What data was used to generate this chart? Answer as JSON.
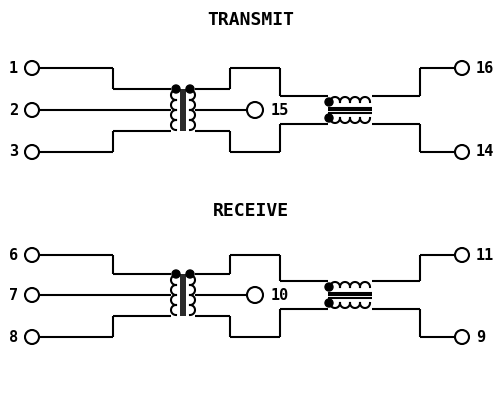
{
  "title_transmit": "TRANSMIT",
  "title_receive": "RECEIVE",
  "bg_color": "#ffffff",
  "line_color": "#000000",
  "line_width": 1.5,
  "figsize": [
    5.02,
    3.94
  ],
  "dpi": 100
}
